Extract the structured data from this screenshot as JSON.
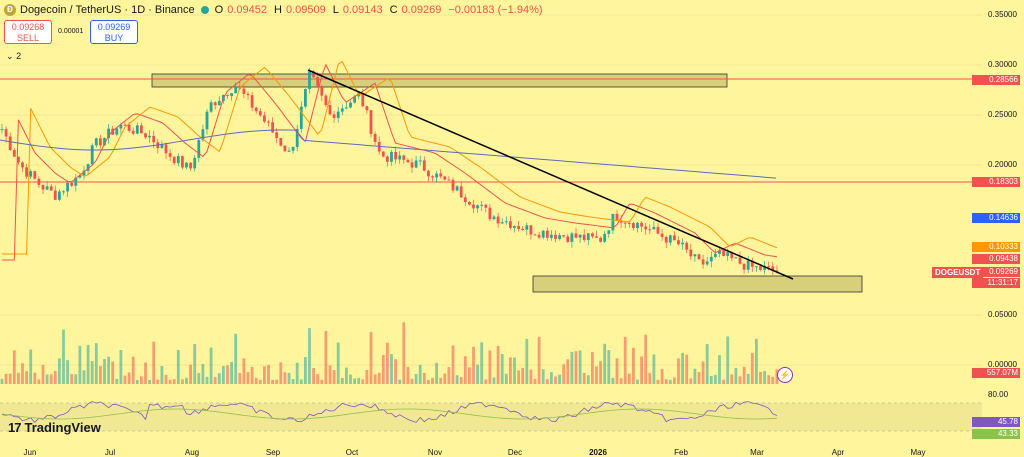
{
  "header": {
    "title": "Dogecoin / TetherUS · 1D · Binance",
    "ohlc": [
      {
        "label": "O",
        "value": "0.09452"
      },
      {
        "label": "H",
        "value": "0.09509"
      },
      {
        "label": "L",
        "value": "0.09143"
      },
      {
        "label": "C",
        "value": "0.09269"
      }
    ],
    "change": "−0.00183 (−1.94%)"
  },
  "trade": {
    "sell_price": "0.09268",
    "sell_label": "SELL",
    "spread": "0.00001",
    "buy_price": "0.09269",
    "buy_label": "BUY"
  },
  "indicators_toggle": "2",
  "price_axis": [
    "0.35000",
    "0.30000",
    "0.25000",
    "0.20000",
    "0.05000",
    "0.00000"
  ],
  "price_tags": {
    "resistance_1": "0.28566",
    "resistance_2": "0.18303",
    "ma_slow": "0.14636",
    "ma_fast": "0.10333",
    "ma_mid": "0.09438",
    "last_price": "0.09269",
    "countdown": "11:31:17",
    "volume": "557.07M",
    "symbol": "DOGEUSDT"
  },
  "rsi_axis": {
    "top": "80.00",
    "rsi_value": "45.78",
    "rsi_ma_value": "43.33"
  },
  "months": [
    "Jun",
    "Jul",
    "Aug",
    "Sep",
    "Oct",
    "Nov",
    "Dec",
    "2026",
    "Feb",
    "Mar",
    "Apr",
    "May"
  ],
  "brand": "TradingView",
  "colors": {
    "background": "#fff59d",
    "up": "#26a69a",
    "down": "#ef5350",
    "ma_slow": "#5c6bc0",
    "ma_mid": "#ff9800",
    "ma_fast": "#ef5350",
    "rsi": "#7e57c2",
    "rsi_ma": "#8bc34a",
    "zone_fill": "#c8bf6b",
    "trendline": "#000000"
  }
}
